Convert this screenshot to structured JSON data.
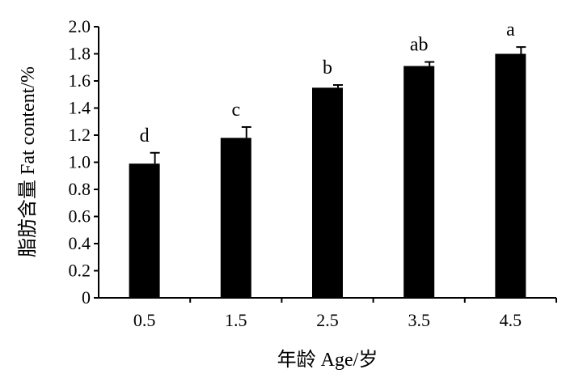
{
  "chart_data": {
    "type": "bar",
    "categories": [
      "0.5",
      "1.5",
      "2.5",
      "3.5",
      "4.5"
    ],
    "values": [
      0.99,
      1.18,
      1.55,
      1.71,
      1.8
    ],
    "errors": [
      0.08,
      0.08,
      0.02,
      0.03,
      0.05
    ],
    "significance": [
      "d",
      "c",
      "b",
      "ab",
      "a"
    ],
    "xlabel": "年龄  Age/岁",
    "ylabel": "脂肪含量  Fat content/%",
    "ylim": [
      0,
      2.0
    ],
    "yticks": [
      "0",
      "0.2",
      "0.4",
      "0.6",
      "0.8",
      "1.0",
      "1.2",
      "1.4",
      "1.6",
      "1.8",
      "2.0"
    ],
    "bar_color": "#000000",
    "grid": false,
    "legend": "none"
  }
}
